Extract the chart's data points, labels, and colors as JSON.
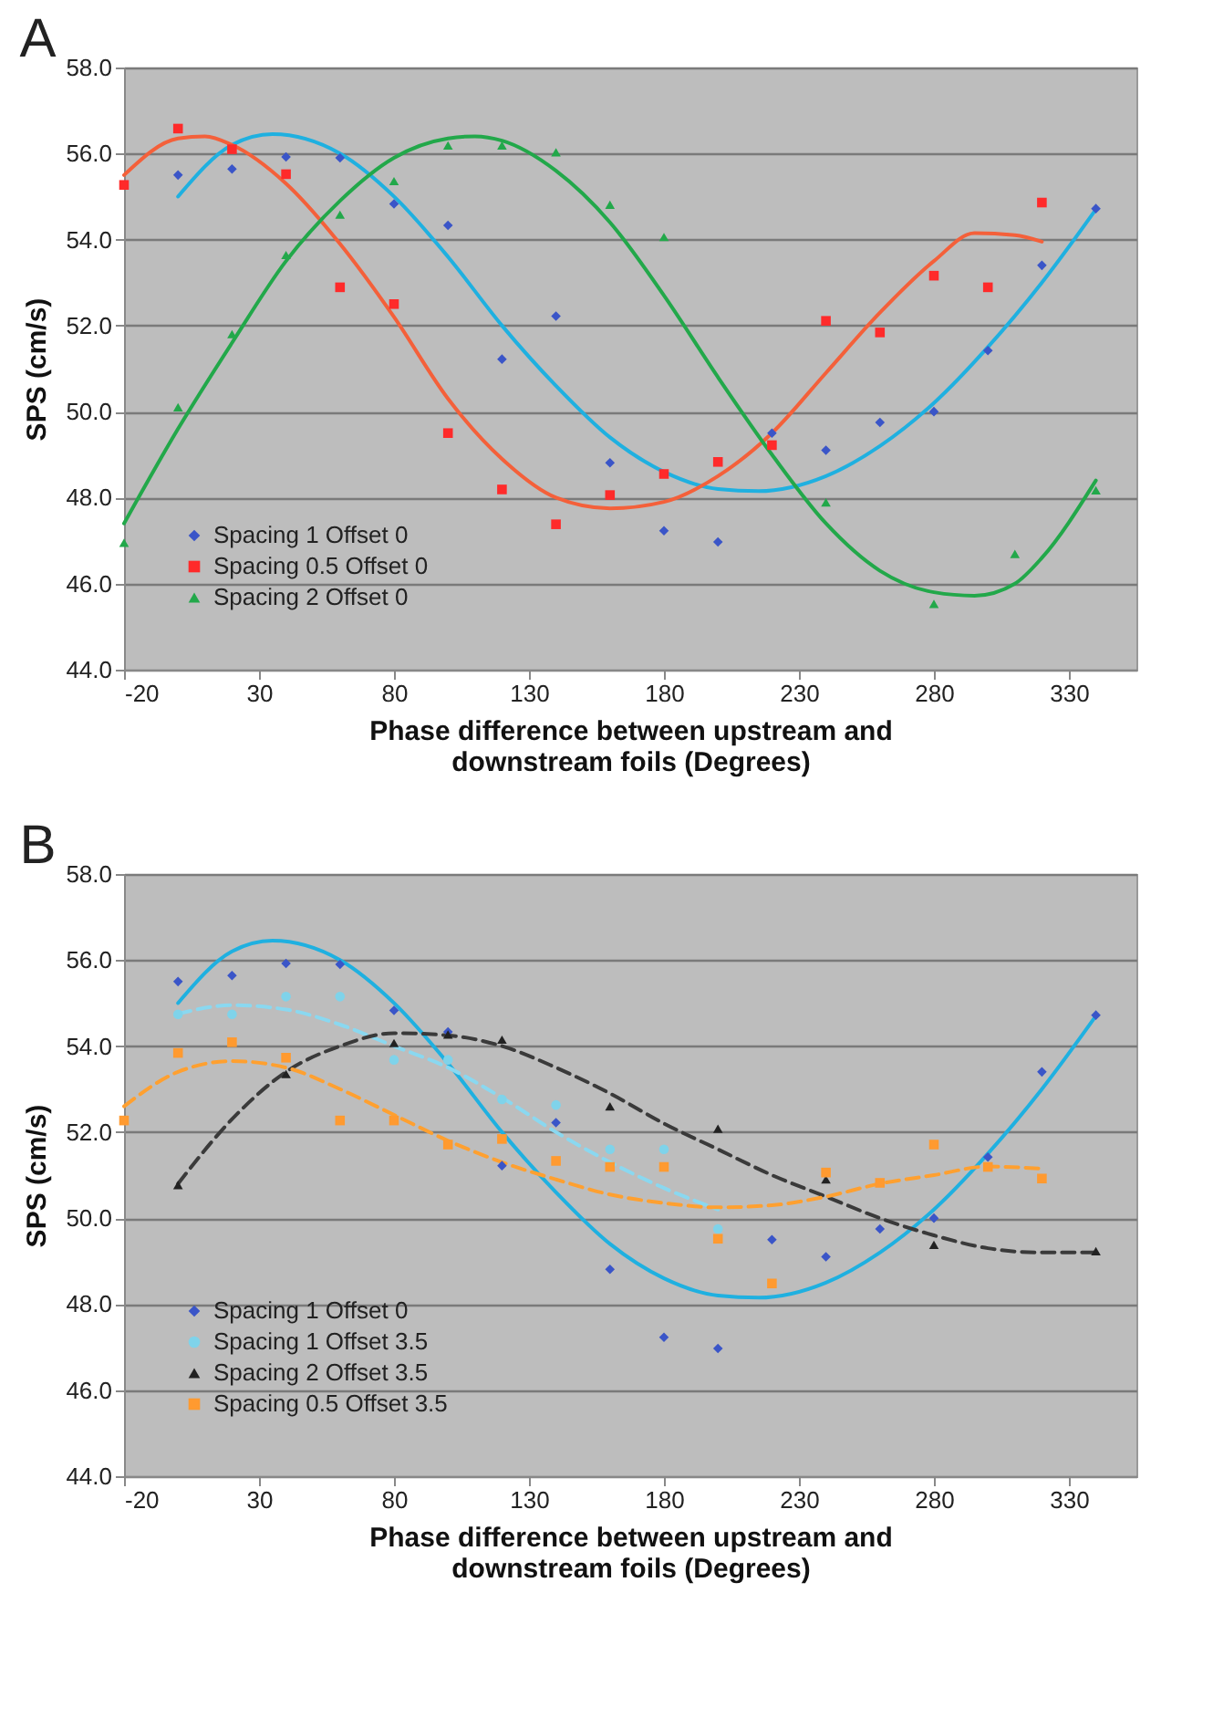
{
  "chart_data": [
    {
      "type": "scatter",
      "title": "A",
      "xlabel": "Phase difference between upstream and\ndownstream foils (Degrees)",
      "ylabel": "SPS (cm/s)",
      "xlim": [
        -20,
        355
      ],
      "xticks": [
        -20,
        30,
        80,
        130,
        180,
        230,
        280,
        330
      ],
      "ylim": [
        44,
        58
      ],
      "yticks": [
        {
          "value": 44,
          "label": "44.0"
        },
        {
          "value": 46,
          "label": "46.0"
        },
        {
          "value": 48,
          "label": "48.0"
        },
        {
          "value": 50,
          "label": "50.0"
        },
        {
          "value": 52,
          "label": "52.0"
        },
        {
          "value": 54,
          "label": "54.0"
        },
        {
          "value": 56,
          "label": "56.0"
        },
        {
          "value": 58,
          "label": "58.0"
        }
      ],
      "grid": "y",
      "legend": "bottom left",
      "series": [
        {
          "type": "line",
          "color": "#1fb0e0",
          "marker": "none",
          "line_style": "solid",
          "x": [
            0,
            20,
            35,
            60,
            80,
            100,
            120,
            140,
            160,
            180,
            200,
            215,
            240,
            260,
            280,
            300,
            320,
            340
          ],
          "values": [
            55.0,
            56.2,
            56.45,
            56.0,
            55.0,
            53.6,
            52.0,
            50.6,
            49.4,
            48.6,
            48.2,
            48.15,
            48.5,
            49.2,
            50.2,
            51.5,
            53.0,
            54.7
          ]
        },
        {
          "type": "line",
          "color": "#f4603a",
          "marker": "none",
          "line_style": "solid",
          "x": [
            -20,
            0,
            10,
            20,
            40,
            60,
            80,
            100,
            120,
            140,
            160,
            180,
            200,
            220,
            240,
            260,
            280,
            295,
            310,
            320
          ],
          "values": [
            55.5,
            56.35,
            56.4,
            56.2,
            55.3,
            53.9,
            52.2,
            50.3,
            48.9,
            48.0,
            47.75,
            47.9,
            48.5,
            49.5,
            50.9,
            52.3,
            53.5,
            54.15,
            54.1,
            53.95
          ]
        },
        {
          "type": "line",
          "color": "#22a84a",
          "marker": "none",
          "line_style": "solid",
          "x": [
            -20,
            0,
            20,
            40,
            60,
            80,
            100,
            110,
            120,
            140,
            160,
            180,
            200,
            220,
            240,
            260,
            280,
            295,
            310,
            320,
            340
          ],
          "values": [
            47.4,
            49.6,
            51.6,
            53.5,
            54.9,
            55.9,
            56.35,
            56.4,
            56.3,
            55.6,
            54.4,
            52.7,
            50.8,
            49.0,
            47.4,
            46.3,
            45.8,
            45.72,
            46.0,
            46.6,
            48.4
          ]
        },
        {
          "type": "scatter",
          "name": "Spacing 1 Offset 0",
          "color": "#3a55c8",
          "marker": "diamond",
          "x": [
            0,
            20,
            40,
            60,
            80,
            100,
            120,
            140,
            160,
            180,
            200,
            220,
            240,
            260,
            280,
            300,
            320,
            340
          ],
          "values": [
            55.5,
            55.64,
            55.92,
            55.9,
            54.83,
            54.33,
            51.22,
            52.22,
            48.81,
            47.23,
            46.97,
            49.5,
            49.1,
            49.75,
            50.0,
            51.42,
            53.4,
            54.72
          ]
        },
        {
          "type": "scatter",
          "name": "Spacing 0.5 Offset 0",
          "color": "#ff2a2a",
          "marker": "square",
          "x": [
            -20,
            0,
            20,
            40,
            60,
            80,
            100,
            120,
            140,
            160,
            180,
            200,
            220,
            240,
            260,
            280,
            300,
            320
          ],
          "values": [
            55.27,
            56.58,
            56.1,
            55.52,
            52.89,
            52.5,
            49.5,
            48.19,
            47.38,
            48.06,
            48.55,
            48.83,
            49.22,
            52.11,
            51.84,
            53.16,
            52.89,
            54.86
          ]
        },
        {
          "type": "scatter",
          "name": "Spacing 2 Offset 0",
          "color": "#22a84a",
          "marker": "triangle",
          "x": [
            -20,
            0,
            20,
            40,
            60,
            80,
            100,
            120,
            140,
            160,
            180,
            240,
            280,
            310,
            340
          ],
          "values": [
            46.95,
            50.1,
            51.8,
            53.64,
            54.58,
            55.36,
            56.19,
            56.19,
            56.03,
            54.81,
            54.06,
            47.89,
            45.53,
            46.69,
            48.17
          ]
        }
      ]
    },
    {
      "type": "scatter",
      "title": "B",
      "xlabel": "Phase difference between upstream and\ndownstream foils (Degrees)",
      "ylabel": "SPS (cm/s)",
      "xlim": [
        -20,
        355
      ],
      "xticks": [
        -20,
        30,
        80,
        130,
        180,
        230,
        280,
        330
      ],
      "ylim": [
        44,
        58
      ],
      "yticks": [
        {
          "value": 44,
          "label": "44.0"
        },
        {
          "value": 46,
          "label": "46.0"
        },
        {
          "value": 48,
          "label": "48.0"
        },
        {
          "value": 50,
          "label": "50.0"
        },
        {
          "value": 52,
          "label": "52.0"
        },
        {
          "value": 54,
          "label": "54.0"
        },
        {
          "value": 56,
          "label": "56.0"
        },
        {
          "value": 58,
          "label": "58.0"
        }
      ],
      "grid": "y",
      "legend": "bottom left",
      "series": [
        {
          "type": "line",
          "color": "#1fb0e0",
          "marker": "none",
          "line_style": "solid",
          "x": [
            0,
            20,
            35,
            60,
            80,
            100,
            120,
            140,
            160,
            180,
            200,
            215,
            240,
            260,
            280,
            300,
            320,
            340
          ],
          "values": [
            55.0,
            56.2,
            56.45,
            56.0,
            55.0,
            53.6,
            52.0,
            50.6,
            49.4,
            48.6,
            48.2,
            48.15,
            48.5,
            49.2,
            50.2,
            51.5,
            53.0,
            54.7
          ]
        },
        {
          "type": "line",
          "color": "#8ad8f0",
          "marker": "none",
          "line_style": "dashed",
          "x": [
            0,
            20,
            40,
            60,
            80,
            100,
            120,
            140,
            160,
            180,
            200
          ],
          "values": [
            54.75,
            54.95,
            54.85,
            54.5,
            54.0,
            53.5,
            52.8,
            52.0,
            51.3,
            50.7,
            50.2
          ]
        },
        {
          "type": "line",
          "color": "#3a3a3a",
          "marker": "none",
          "line_style": "dashed",
          "x": [
            0,
            20,
            40,
            60,
            80,
            100,
            120,
            140,
            160,
            180,
            200,
            220,
            240,
            260,
            280,
            300,
            320,
            340
          ],
          "values": [
            50.8,
            52.3,
            53.4,
            54.0,
            54.3,
            54.25,
            54.0,
            53.5,
            52.9,
            52.2,
            51.6,
            51.0,
            50.5,
            50.0,
            49.6,
            49.3,
            49.2,
            49.2
          ]
        },
        {
          "type": "line",
          "color": "#ffa030",
          "marker": "none",
          "line_style": "dashed",
          "x": [
            -20,
            0,
            20,
            40,
            60,
            80,
            100,
            120,
            140,
            160,
            180,
            200,
            220,
            240,
            260,
            280,
            300,
            320
          ],
          "values": [
            52.6,
            53.4,
            53.65,
            53.5,
            53.0,
            52.4,
            51.8,
            51.3,
            50.9,
            50.55,
            50.35,
            50.25,
            50.3,
            50.5,
            50.8,
            51.0,
            51.2,
            51.15
          ]
        },
        {
          "type": "scatter",
          "name": "Spacing 1 Offset 0",
          "color": "#3a55c8",
          "marker": "diamond",
          "x": [
            0,
            20,
            40,
            60,
            80,
            100,
            120,
            140,
            160,
            180,
            200,
            220,
            240,
            260,
            280,
            300,
            320,
            340
          ],
          "values": [
            55.5,
            55.64,
            55.92,
            55.9,
            54.83,
            54.33,
            51.22,
            52.22,
            48.81,
            47.23,
            46.97,
            49.5,
            49.1,
            49.75,
            50.0,
            51.42,
            53.4,
            54.72
          ]
        },
        {
          "type": "scatter",
          "name": "Spacing 1 Offset 3.5",
          "color": "#7fd3ea",
          "marker": "circle",
          "x": [
            0,
            20,
            40,
            60,
            80,
            100,
            120,
            140,
            160,
            180,
            200
          ],
          "values": [
            54.74,
            54.74,
            55.15,
            55.15,
            53.68,
            53.68,
            52.76,
            52.63,
            51.6,
            51.6,
            49.75
          ]
        },
        {
          "type": "scatter",
          "name": "Spacing 2 Offset 3.5",
          "color": "#222222",
          "marker": "triangle",
          "x": [
            0,
            40,
            80,
            100,
            120,
            160,
            200,
            240,
            280,
            340
          ],
          "values": [
            50.77,
            53.35,
            54.07,
            54.27,
            54.15,
            52.6,
            52.08,
            50.9,
            49.38,
            49.23
          ]
        },
        {
          "type": "scatter",
          "name": "Spacing 0.5 Offset 3.5",
          "color": "#ff9a30",
          "marker": "square",
          "x": [
            -20,
            0,
            20,
            40,
            60,
            80,
            100,
            120,
            140,
            160,
            180,
            200,
            220,
            240,
            260,
            280,
            300,
            320
          ],
          "values": [
            52.27,
            53.84,
            54.09,
            53.73,
            52.27,
            52.27,
            51.71,
            51.84,
            51.33,
            51.19,
            51.19,
            49.52,
            48.48,
            51.06,
            50.82,
            51.71,
            51.19,
            50.92
          ]
        }
      ]
    }
  ]
}
